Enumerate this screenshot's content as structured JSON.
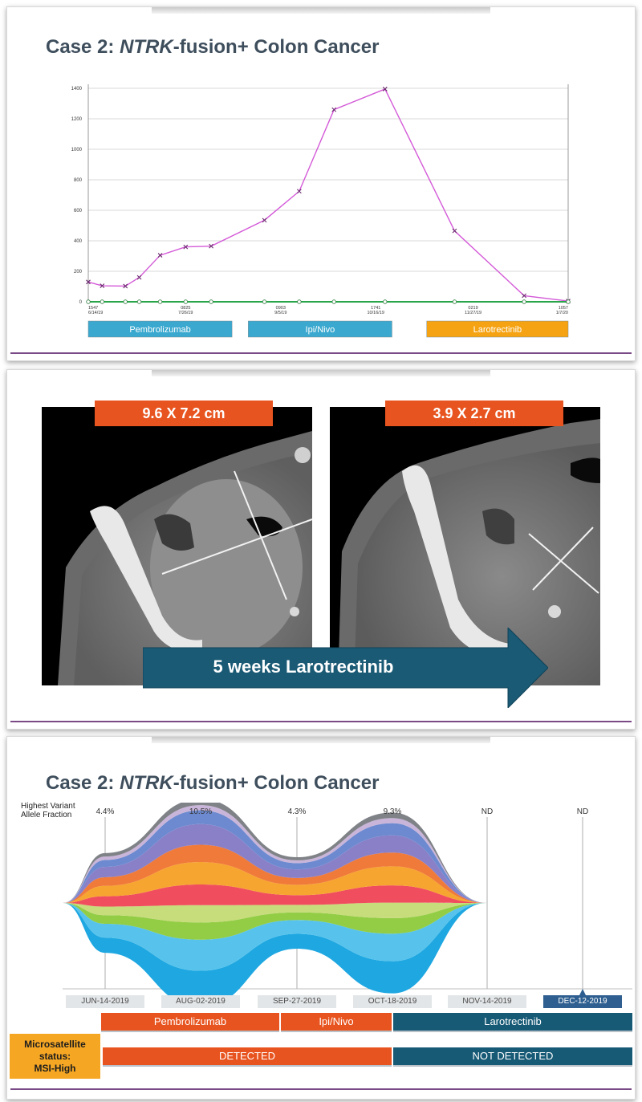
{
  "panel1": {
    "title_prefix": "Case 2: ",
    "title_italic": "NTRK",
    "title_suffix": "-fusion+ Colon Cancer"
  },
  "chart_data": [
    {
      "type": "line",
      "title": "",
      "xlabel": "",
      "ylabel": "",
      "ylim": [
        0,
        1400
      ],
      "yticks": [
        0,
        200,
        400,
        600,
        800,
        1000,
        1200,
        1400
      ],
      "grid": true,
      "xticks": [
        {
          "id": "1547",
          "date": "6/14/19"
        },
        {
          "id": "0825",
          "date": "7/26/19"
        },
        {
          "id": "0903",
          "date": "9/5/19"
        },
        {
          "id": "1741",
          "date": "10/16/19"
        },
        {
          "id": "0219",
          "date": "11/27/19"
        },
        {
          "id": "1057",
          "date": "1/7/20"
        }
      ],
      "series": [
        {
          "color": "#d45ad8",
          "marker": "x",
          "points": [
            {
              "x": "2019-06-14",
              "y": 130
            },
            {
              "x": "2019-06-20",
              "y": 105
            },
            {
              "x": "2019-06-30",
              "y": 103
            },
            {
              "x": "2019-07-06",
              "y": 160
            },
            {
              "x": "2019-07-15",
              "y": 305
            },
            {
              "x": "2019-07-26",
              "y": 360
            },
            {
              "x": "2019-08-06",
              "y": 365
            },
            {
              "x": "2019-08-29",
              "y": 535
            },
            {
              "x": "2019-09-13",
              "y": 725
            },
            {
              "x": "2019-09-28",
              "y": 1260
            },
            {
              "x": "2019-10-20",
              "y": 1395
            },
            {
              "x": "2019-11-19",
              "y": 465
            },
            {
              "x": "2019-12-19",
              "y": 40
            },
            {
              "x": "2020-01-07",
              "y": 5
            }
          ]
        },
        {
          "color": "#2aa54a",
          "marker": "o",
          "points": [
            {
              "x": "2019-06-14",
              "y": 0
            },
            {
              "x": "2019-06-20",
              "y": 0
            },
            {
              "x": "2019-06-30",
              "y": 0
            },
            {
              "x": "2019-07-06",
              "y": 0
            },
            {
              "x": "2019-07-15",
              "y": 0
            },
            {
              "x": "2019-07-26",
              "y": 0
            },
            {
              "x": "2019-08-06",
              "y": 0
            },
            {
              "x": "2019-08-29",
              "y": 0
            },
            {
              "x": "2019-09-13",
              "y": 0
            },
            {
              "x": "2019-09-28",
              "y": 0
            },
            {
              "x": "2019-10-20",
              "y": 0
            },
            {
              "x": "2019-11-19",
              "y": 0
            },
            {
              "x": "2019-12-19",
              "y": 0
            },
            {
              "x": "2020-01-07",
              "y": 0
            }
          ]
        }
      ],
      "treatments": [
        {
          "label": "Pembrolizumab",
          "start": "2019-06-14",
          "end": "2019-08-15",
          "color": "#3aa8cf"
        },
        {
          "label": "Ipi/Nivo",
          "start": "2019-08-22",
          "end": "2019-10-23",
          "color": "#3aa8cf"
        },
        {
          "label": "Larotrectinib",
          "start": "2019-11-07",
          "end": "2020-01-07",
          "color": "#f5a313"
        }
      ]
    },
    {
      "type": "area",
      "title": "",
      "ylabel": "Highest Variant Allele Fraction",
      "x": [
        "JUN-14-2019",
        "AUG-02-2019",
        "SEP-27-2019",
        "OCT-18-2019",
        "NOV-14-2019",
        "DEC-12-2019"
      ],
      "selected_x": "DEC-12-2019",
      "vaf_labels": [
        "4.4%",
        "10.5%",
        "4.3%",
        "9.3%",
        "ND",
        "ND"
      ],
      "series": [
        {
          "color": "#1ea7e1",
          "values": [
            4.4,
            10.5,
            4.3,
            9.3,
            0,
            0
          ]
        },
        {
          "color": "#57c3ec",
          "values": [
            4.0,
            9.0,
            4.0,
            8.0,
            0,
            0
          ]
        },
        {
          "color": "#92cd45",
          "values": [
            2.5,
            5.0,
            2.2,
            4.5,
            0,
            0
          ]
        },
        {
          "color": "#c7dc7a",
          "values": [
            2.5,
            5.0,
            2.2,
            4.5,
            0,
            0
          ]
        },
        {
          "color": "#f04e5e",
          "values": [
            3.0,
            6.0,
            2.8,
            5.0,
            0,
            0
          ]
        },
        {
          "color": "#f7a531",
          "values": [
            3.0,
            6.5,
            3.0,
            5.5,
            0,
            0
          ]
        },
        {
          "color": "#f07a3a",
          "values": [
            2.5,
            5.0,
            2.0,
            4.0,
            0,
            0
          ]
        },
        {
          "color": "#8a80c8",
          "values": [
            3.0,
            6.0,
            2.5,
            5.0,
            0,
            0
          ]
        },
        {
          "color": "#6d8ad0",
          "values": [
            2.0,
            4.0,
            1.8,
            3.5,
            0,
            0
          ]
        },
        {
          "color": "#c9b5d9",
          "values": [
            1.0,
            1.5,
            0.8,
            1.5,
            0,
            0
          ]
        },
        {
          "color": "#7f8286",
          "values": [
            1.0,
            1.8,
            0.9,
            1.6,
            0,
            0
          ]
        }
      ]
    }
  ],
  "panel2": {
    "measure_before": "9.6 X 7.2 cm",
    "measure_after": "3.9 X 2.7 cm",
    "arrow_label": "5 weeks Larotrectinib"
  },
  "panel3": {
    "title_prefix": "Case 2: ",
    "title_italic": "NTRK",
    "title_suffix": "-fusion+ Colon Cancer",
    "ylabel_line1": "Highest Variant",
    "ylabel_line2": "Allele Fraction",
    "treatments": [
      {
        "label": "Pembrolizumab"
      },
      {
        "label": "Ipi/Nivo"
      },
      {
        "label": "Larotrectinib"
      }
    ],
    "msi_line1": "Microsatellite",
    "msi_line2": "status:",
    "msi_line3": "MSI-High",
    "msi_detected": "DETECTED",
    "msi_not_detected": "NOT DETECTED"
  },
  "colors": {
    "title": "#3e4e5c",
    "orange": "#e8541f",
    "teal": "#175a76",
    "arrow": "#1a5a75",
    "footline": "#7a4a86"
  }
}
